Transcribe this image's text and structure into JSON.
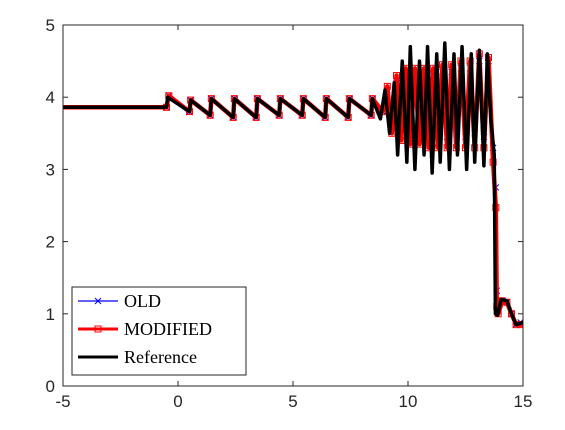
{
  "chart_data": {
    "type": "line",
    "title": "",
    "xlabel": "",
    "ylabel": "",
    "xlim": [
      -5,
      15
    ],
    "ylim": [
      0,
      5
    ],
    "x_ticks": [
      -5,
      0,
      5,
      10,
      15
    ],
    "y_ticks": [
      0,
      1,
      2,
      3,
      4,
      5
    ],
    "grid": false,
    "legend_position": "bottom-left",
    "series": [
      {
        "name": "OLD",
        "color": "#0000ff",
        "marker": "x",
        "points": [
          [
            -5,
            3.86
          ],
          [
            -0.5,
            3.86
          ],
          [
            -0.4,
            4.02
          ],
          [
            0.5,
            3.8
          ],
          [
            0.55,
            3.96
          ],
          [
            1.4,
            3.75
          ],
          [
            1.45,
            3.98
          ],
          [
            2.4,
            3.72
          ],
          [
            2.45,
            3.98
          ],
          [
            3.4,
            3.72
          ],
          [
            3.45,
            3.98
          ],
          [
            4.4,
            3.75
          ],
          [
            4.45,
            3.98
          ],
          [
            5.4,
            3.75
          ],
          [
            5.45,
            3.98
          ],
          [
            6.4,
            3.72
          ],
          [
            6.45,
            3.98
          ],
          [
            7.4,
            3.72
          ],
          [
            7.45,
            3.98
          ],
          [
            8.4,
            3.75
          ],
          [
            8.45,
            3.98
          ],
          [
            8.9,
            3.8
          ],
          [
            9.1,
            4.1
          ],
          [
            9.3,
            3.6
          ],
          [
            9.5,
            4.2
          ],
          [
            9.7,
            3.55
          ],
          [
            9.9,
            4.25
          ],
          [
            10.1,
            3.55
          ],
          [
            10.3,
            4.3
          ],
          [
            10.5,
            3.5
          ],
          [
            10.7,
            4.3
          ],
          [
            10.9,
            3.5
          ],
          [
            11.1,
            4.3
          ],
          [
            11.3,
            3.5
          ],
          [
            11.5,
            4.35
          ],
          [
            11.7,
            3.45
          ],
          [
            11.9,
            4.35
          ],
          [
            12.1,
            3.5
          ],
          [
            12.3,
            4.4
          ],
          [
            12.5,
            3.45
          ],
          [
            12.7,
            4.4
          ],
          [
            12.9,
            3.5
          ],
          [
            13.1,
            4.5
          ],
          [
            13.3,
            3.45
          ],
          [
            13.5,
            4.5
          ],
          [
            13.7,
            3.3
          ],
          [
            13.82,
            2.75
          ],
          [
            13.86,
            1.32
          ],
          [
            13.92,
            1.05
          ],
          [
            14.1,
            1.18
          ],
          [
            14.3,
            1.16
          ],
          [
            14.5,
            1.0
          ],
          [
            14.7,
            0.85
          ],
          [
            14.9,
            0.88
          ],
          [
            15,
            0.92
          ]
        ]
      },
      {
        "name": "MODIFIED",
        "color": "#ff0000",
        "marker": "square",
        "points": [
          [
            -5,
            3.86
          ],
          [
            -0.5,
            3.86
          ],
          [
            -0.4,
            4.02
          ],
          [
            0.5,
            3.8
          ],
          [
            0.55,
            3.96
          ],
          [
            1.4,
            3.75
          ],
          [
            1.45,
            3.98
          ],
          [
            2.4,
            3.72
          ],
          [
            2.45,
            3.98
          ],
          [
            3.4,
            3.72
          ],
          [
            3.45,
            3.98
          ],
          [
            4.4,
            3.75
          ],
          [
            4.45,
            3.98
          ],
          [
            5.4,
            3.75
          ],
          [
            5.45,
            3.98
          ],
          [
            6.4,
            3.72
          ],
          [
            6.45,
            3.98
          ],
          [
            7.4,
            3.72
          ],
          [
            7.45,
            3.98
          ],
          [
            8.4,
            3.75
          ],
          [
            8.45,
            3.98
          ],
          [
            8.9,
            3.8
          ],
          [
            9.1,
            4.15
          ],
          [
            9.3,
            3.5
          ],
          [
            9.5,
            4.3
          ],
          [
            9.7,
            3.4
          ],
          [
            9.9,
            4.4
          ],
          [
            10.1,
            3.35
          ],
          [
            10.3,
            4.4
          ],
          [
            10.5,
            3.35
          ],
          [
            10.7,
            4.4
          ],
          [
            10.9,
            3.3
          ],
          [
            11.1,
            4.4
          ],
          [
            11.3,
            3.3
          ],
          [
            11.5,
            4.45
          ],
          [
            11.7,
            3.3
          ],
          [
            11.9,
            4.45
          ],
          [
            12.1,
            3.3
          ],
          [
            12.3,
            4.5
          ],
          [
            12.5,
            3.3
          ],
          [
            12.7,
            4.5
          ],
          [
            12.9,
            3.3
          ],
          [
            13.1,
            4.6
          ],
          [
            13.3,
            3.3
          ],
          [
            13.5,
            4.55
          ],
          [
            13.7,
            3.1
          ],
          [
            13.82,
            2.47
          ],
          [
            13.86,
            1.1
          ],
          [
            13.92,
            1.0
          ],
          [
            14.1,
            1.18
          ],
          [
            14.3,
            1.16
          ],
          [
            14.5,
            1.0
          ],
          [
            14.7,
            0.85
          ],
          [
            14.9,
            0.85
          ],
          [
            15,
            0.85
          ]
        ]
      },
      {
        "name": "Reference",
        "color": "#000000",
        "marker": "none",
        "points": [
          [
            -5,
            3.86
          ],
          [
            -0.5,
            3.86
          ],
          [
            -0.45,
            4.0
          ],
          [
            0.5,
            3.8
          ],
          [
            0.55,
            3.96
          ],
          [
            1.4,
            3.75
          ],
          [
            1.45,
            3.98
          ],
          [
            2.4,
            3.72
          ],
          [
            2.45,
            3.98
          ],
          [
            3.4,
            3.72
          ],
          [
            3.45,
            3.98
          ],
          [
            4.4,
            3.75
          ],
          [
            4.45,
            3.98
          ],
          [
            5.4,
            3.75
          ],
          [
            5.45,
            3.98
          ],
          [
            6.4,
            3.72
          ],
          [
            6.45,
            3.98
          ],
          [
            7.4,
            3.72
          ],
          [
            7.45,
            3.98
          ],
          [
            8.4,
            3.75
          ],
          [
            8.45,
            3.98
          ],
          [
            8.8,
            3.7
          ],
          [
            9.0,
            4.1
          ],
          [
            9.2,
            3.5
          ],
          [
            9.4,
            4.2
          ],
          [
            9.55,
            3.2
          ],
          [
            9.75,
            4.5
          ],
          [
            9.95,
            3.1
          ],
          [
            10.1,
            4.7
          ],
          [
            10.3,
            3.0
          ],
          [
            10.5,
            4.5
          ],
          [
            10.7,
            3.2
          ],
          [
            10.85,
            4.7
          ],
          [
            11.05,
            2.95
          ],
          [
            11.25,
            4.6
          ],
          [
            11.4,
            3.1
          ],
          [
            11.6,
            4.75
          ],
          [
            11.8,
            3.0
          ],
          [
            12.0,
            4.6
          ],
          [
            12.15,
            3.2
          ],
          [
            12.35,
            4.7
          ],
          [
            12.55,
            3.0
          ],
          [
            12.75,
            4.6
          ],
          [
            12.9,
            3.1
          ],
          [
            13.1,
            4.65
          ],
          [
            13.3,
            3.05
          ],
          [
            13.45,
            4.6
          ],
          [
            13.6,
            3.7
          ],
          [
            13.75,
            3.2
          ],
          [
            13.8,
            1.0
          ],
          [
            13.9,
            0.98
          ],
          [
            14.05,
            1.2
          ],
          [
            14.3,
            1.18
          ],
          [
            14.5,
            1.0
          ],
          [
            14.7,
            0.85
          ],
          [
            14.9,
            0.87
          ],
          [
            15,
            0.88
          ]
        ]
      }
    ]
  }
}
